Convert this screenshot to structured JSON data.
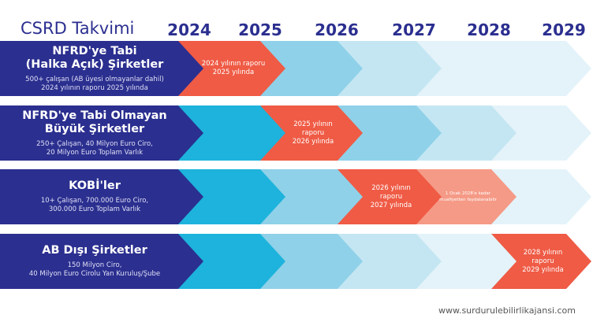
{
  "title": "CSRD Takvimi",
  "years": [
    "2024",
    "2025",
    "2026",
    "2027",
    "2028",
    "2029"
  ],
  "colors": {
    "navy": "#2b2f8f",
    "red": "#ef5b45",
    "salmon": "#f59a86",
    "cyan": "#1db3dc",
    "blue1": "#8fd1e8",
    "blue2": "#c4e6f3",
    "blue3": "#e4f3f9"
  },
  "rows": [
    {
      "title1": "NFRD'ye Tabi",
      "title2": "(Halka Açık) Şirketler",
      "sub1": "500+ çalışan (AB üyesi olmayanlar dahil)",
      "sub2": "2024 yılının raporu 2025 yılında",
      "segments": [
        "navy",
        "red",
        "blue1",
        "blue2",
        "blue3",
        "blue3"
      ],
      "note": {
        "seg": 1,
        "l1": "2024 yılının raporu",
        "l2": "2025 yılında"
      }
    },
    {
      "title1": "NFRD'ye Tabi Olmayan",
      "title2": "Büyük Şirketler",
      "sub1": "250+ Çalışan, 40 Milyon Euro Ciro,",
      "sub2": "20 Milyon Euro Toplam Varlık",
      "segments": [
        "navy",
        "cyan",
        "red",
        "blue1",
        "blue2",
        "blue3"
      ],
      "note": {
        "seg": 2,
        "l1": "2025 yılının raporu",
        "l2": "2026 yılında"
      }
    },
    {
      "title1": "KOBİ'ler",
      "title2": "",
      "sub1": "10+ Çalışan, 700.000 Euro Ciro,",
      "sub2": "300.000 Euro Toplam Varlık",
      "segments": [
        "navy",
        "cyan",
        "blue1",
        "red",
        "salmon",
        "blue3"
      ],
      "note": {
        "seg": 3,
        "l1": "2026 yılının raporu",
        "l2": "2027 yılında"
      },
      "note2": {
        "seg": 4,
        "l1": "1 Ocak 2028'e kadar",
        "l2": "muafiyetten faydalanabilir"
      }
    },
    {
      "title1": "AB Dışı Şirketler",
      "title2": "",
      "sub1": "150 Milyon Ciro,",
      "sub2": "40 Milyon Euro Cirolu Yan Kuruluş/Şube",
      "segments": [
        "navy",
        "cyan",
        "blue1",
        "blue2",
        "blue3",
        "red"
      ],
      "note": {
        "seg": 5,
        "l1": "2028 yılının raporu",
        "l2": "2029 yılında"
      }
    }
  ],
  "website": "www.surdurulebilirlikajansi.com"
}
